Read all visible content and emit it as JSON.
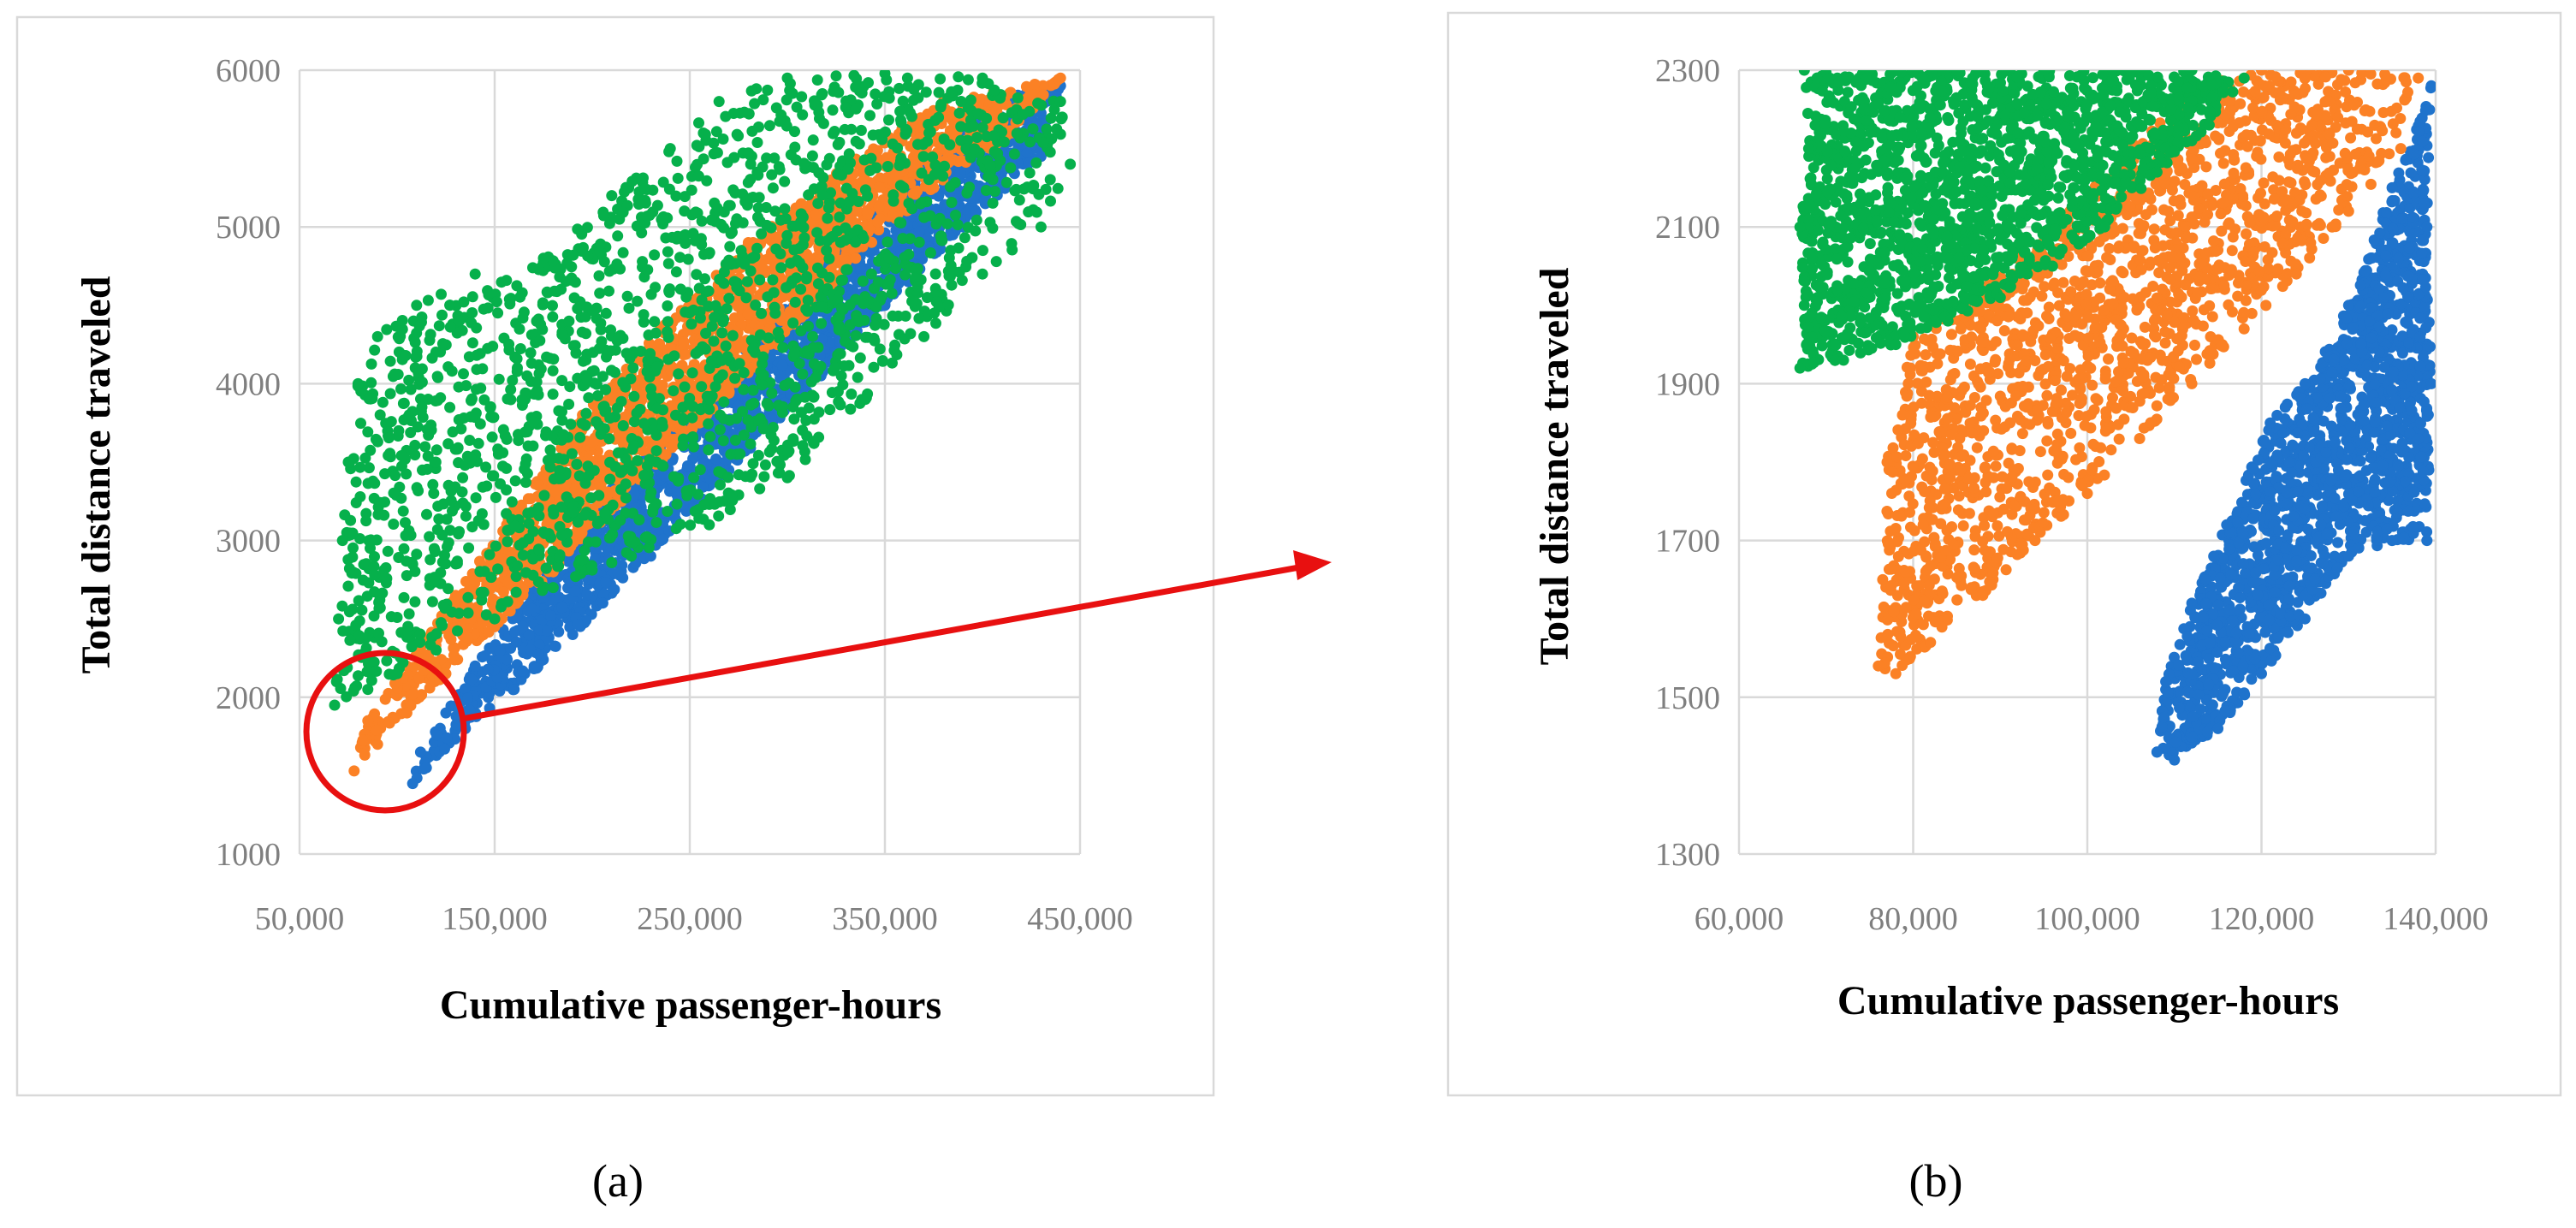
{
  "colors": {
    "blue": "#1f73cc",
    "orange": "#fb8125",
    "green": "#06b04b",
    "highlight": "#e81010",
    "grid": "#d9d9d9",
    "tick": "#7f7f7f"
  },
  "highlight": {
    "circle_icon": "red-circle-icon",
    "arrow_icon": "red-arrow-icon"
  },
  "chart_data": [
    {
      "type": "scatter",
      "panel_label": "(a)",
      "xlabel": "Cumulative passenger-hours",
      "ylabel": "Total distance traveled",
      "xlim": [
        50000,
        450000
      ],
      "ylim": [
        1000,
        6000
      ],
      "x_ticks": [
        50000,
        150000,
        250000,
        350000,
        450000
      ],
      "x_tick_labels": [
        "50,000",
        "150,000",
        "250,000",
        "350,000",
        "450,000"
      ],
      "y_ticks": [
        1000,
        2000,
        3000,
        4000,
        5000,
        6000
      ],
      "y_tick_labels": [
        "1000",
        "2000",
        "3000",
        "4000",
        "5000",
        "6000"
      ],
      "grid": true,
      "legend": "none",
      "series": [
        {
          "color": "blue",
          "points": [
            [
              108000,
              1450
            ],
            [
              115000,
              1550
            ],
            [
              135000,
              1800
            ],
            [
              160000,
              2050
            ],
            [
              190000,
              2400
            ],
            [
              230000,
              2900
            ],
            [
              270000,
              3450
            ],
            [
              310000,
              3950
            ],
            [
              350000,
              4500
            ],
            [
              390000,
              5000
            ],
            [
              430000,
              5450
            ],
            [
              440000,
              5900
            ],
            [
              400000,
              5800
            ],
            [
              360000,
              5300
            ],
            [
              320000,
              4750
            ],
            [
              280000,
              4250
            ],
            [
              240000,
              3750
            ],
            [
              200000,
              3200
            ],
            [
              170000,
              2700
            ],
            [
              140000,
              2200
            ],
            [
              125000,
              1900
            ],
            [
              112000,
              1650
            ]
          ]
        },
        {
          "color": "orange",
          "points": [
            [
              78000,
              1530
            ],
            [
              90000,
              1700
            ],
            [
              105000,
              1900
            ],
            [
              125000,
              2150
            ],
            [
              150000,
              2450
            ],
            [
              180000,
              2800
            ],
            [
              215000,
              3250
            ],
            [
              255000,
              3750
            ],
            [
              295000,
              4250
            ],
            [
              335000,
              4800
            ],
            [
              375000,
              5250
            ],
            [
              415000,
              5600
            ],
            [
              440000,
              5950
            ],
            [
              380000,
              5800
            ],
            [
              330000,
              5400
            ],
            [
              280000,
              4900
            ],
            [
              235000,
              4350
            ],
            [
              195000,
              3800
            ],
            [
              160000,
              3200
            ],
            [
              130000,
              2650
            ],
            [
              105000,
              2200
            ],
            [
              85000,
              1850
            ]
          ]
        },
        {
          "color": "green",
          "points": [
            [
              68000,
              1950
            ],
            [
              70000,
              2500
            ],
            [
              72000,
              3000
            ],
            [
              75000,
              3500
            ],
            [
              80000,
              4000
            ],
            [
              90000,
              4300
            ],
            [
              110000,
              4500
            ],
            [
              140000,
              4700
            ],
            [
              175000,
              4800
            ],
            [
              210000,
              5200
            ],
            [
              240000,
              5500
            ],
            [
              265000,
              5800
            ],
            [
              300000,
              5950
            ],
            [
              350000,
              5980
            ],
            [
              400000,
              5950
            ],
            [
              440000,
              5800
            ],
            [
              445000,
              5400
            ],
            [
              430000,
              5000
            ],
            [
              400000,
              4700
            ],
            [
              370000,
              4300
            ],
            [
              340000,
              3900
            ],
            [
              300000,
              3400
            ],
            [
              260000,
              3100
            ],
            [
              220000,
              2900
            ],
            [
              180000,
              2700
            ],
            [
              150000,
              2500
            ],
            [
              120000,
              2300
            ],
            [
              100000,
              2150
            ],
            [
              85000,
              2050
            ]
          ]
        }
      ]
    },
    {
      "type": "scatter",
      "panel_label": "(b)",
      "xlabel": "Cumulative passenger-hours",
      "ylabel": "Total distance traveled",
      "xlim": [
        60000,
        140000
      ],
      "ylim": [
        1300,
        2300
      ],
      "x_ticks": [
        60000,
        80000,
        100000,
        120000,
        140000
      ],
      "x_tick_labels": [
        "60,000",
        "80,000",
        "100,000",
        "120,000",
        "140,000"
      ],
      "y_ticks": [
        1300,
        1500,
        1700,
        1900,
        2100,
        2300
      ],
      "y_tick_labels": [
        "1300",
        "1500",
        "1700",
        "1900",
        "2100",
        "2300"
      ],
      "grid": true,
      "legend": "none",
      "series": [
        {
          "color": "blue",
          "points": [
            [
              108000,
              1430
            ],
            [
              110000,
              1420
            ],
            [
              115000,
              1460
            ],
            [
              120000,
              1530
            ],
            [
              125000,
              1600
            ],
            [
              130000,
              1680
            ],
            [
              135000,
              1700
            ],
            [
              139000,
              1700
            ],
            [
              139500,
              1900
            ],
            [
              139000,
              2100
            ],
            [
              139500,
              2280
            ],
            [
              135000,
              2150
            ],
            [
              130000,
              2000
            ],
            [
              125000,
              1900
            ],
            [
              121000,
              1850
            ],
            [
              116000,
              1720
            ],
            [
              112000,
              1620
            ],
            [
              109000,
              1520
            ]
          ]
        },
        {
          "color": "orange",
          "points": [
            [
              76000,
              1540
            ],
            [
              78000,
              1530
            ],
            [
              82000,
              1570
            ],
            [
              88000,
              1630
            ],
            [
              94000,
              1700
            ],
            [
              100000,
              1760
            ],
            [
              106000,
              1830
            ],
            [
              112000,
              1900
            ],
            [
              118000,
              1970
            ],
            [
              124000,
              2040
            ],
            [
              130000,
              2120
            ],
            [
              136000,
              2200
            ],
            [
              138000,
              2290
            ],
            [
              130000,
              2300
            ],
            [
              120000,
              2300
            ],
            [
              112000,
              2280
            ],
            [
              105000,
              2200
            ],
            [
              98000,
              2120
            ],
            [
              92000,
              2060
            ],
            [
              86000,
              2000
            ],
            [
              80000,
              1960
            ],
            [
              77000,
              1800
            ],
            [
              76500,
              1650
            ]
          ]
        },
        {
          "color": "green",
          "points": [
            [
              67000,
              1920
            ],
            [
              67500,
              2000
            ],
            [
              67000,
              2100
            ],
            [
              68000,
              2200
            ],
            [
              67500,
              2300
            ],
            [
              75000,
              2300
            ],
            [
              85000,
              2300
            ],
            [
              95000,
              2300
            ],
            [
              105000,
              2300
            ],
            [
              112000,
              2300
            ],
            [
              118000,
              2290
            ],
            [
              114000,
              2230
            ],
            [
              108000,
              2170
            ],
            [
              102000,
              2100
            ],
            [
              96000,
              2050
            ],
            [
              90000,
              2010
            ],
            [
              84000,
              1980
            ],
            [
              78000,
              1950
            ],
            [
              72000,
              1930
            ]
          ]
        }
      ]
    }
  ]
}
